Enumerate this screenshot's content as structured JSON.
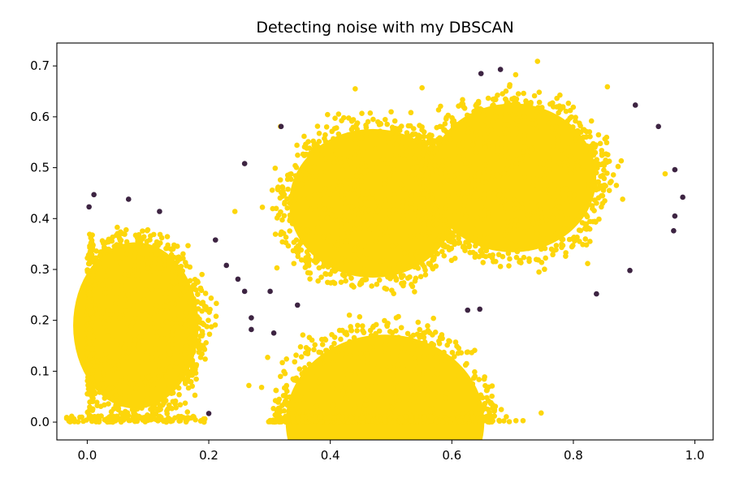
{
  "chart_data": {
    "type": "scatter",
    "title": "Detecting noise with my DBSCAN",
    "xlabel": "",
    "ylabel": "",
    "xlim": [
      -0.05,
      1.03
    ],
    "ylim": [
      -0.035,
      0.745
    ],
    "xticks": [
      0.0,
      0.2,
      0.4,
      0.6,
      0.8,
      1.0
    ],
    "xtick_labels": [
      "0.0",
      "0.2",
      "0.4",
      "0.6",
      "0.8",
      "1.0"
    ],
    "yticks": [
      0.0,
      0.1,
      0.2,
      0.3,
      0.4,
      0.5,
      0.6,
      0.7
    ],
    "ytick_labels": [
      "0.0",
      "0.1",
      "0.2",
      "0.3",
      "0.4",
      "0.5",
      "0.6",
      "0.7"
    ],
    "grid": false,
    "legend": "none",
    "colors": {
      "cluster": "#FDD60A",
      "noise": "#3D2442"
    },
    "clusters": [
      {
        "shape": "ellipse",
        "cx": 0.08,
        "cy": 0.19,
        "rx": 0.12,
        "ry": 0.19,
        "x_min": 0.0,
        "y_min": 0.0
      },
      {
        "shape": "ellipse",
        "cx": 0.47,
        "cy": 0.43,
        "rx": 0.16,
        "ry": 0.17
      },
      {
        "shape": "ellipse",
        "cx": 0.7,
        "cy": 0.48,
        "rx": 0.16,
        "ry": 0.17
      },
      {
        "shape": "ellipse",
        "cx": 0.49,
        "cy": 0.0,
        "rx": 0.19,
        "ry": 0.2,
        "y_min": 0.0
      }
    ],
    "noise_points": [
      {
        "x": 0.003,
        "y": 0.423
      },
      {
        "x": 0.011,
        "y": 0.447
      },
      {
        "x": 0.068,
        "y": 0.438
      },
      {
        "x": 0.119,
        "y": 0.414
      },
      {
        "x": 0.211,
        "y": 0.358
      },
      {
        "x": 0.229,
        "y": 0.308
      },
      {
        "x": 0.248,
        "y": 0.281
      },
      {
        "x": 0.259,
        "y": 0.508
      },
      {
        "x": 0.259,
        "y": 0.257
      },
      {
        "x": 0.27,
        "y": 0.205
      },
      {
        "x": 0.27,
        "y": 0.182
      },
      {
        "x": 0.301,
        "y": 0.257
      },
      {
        "x": 0.307,
        "y": 0.175
      },
      {
        "x": 0.319,
        "y": 0.581
      },
      {
        "x": 0.346,
        "y": 0.23
      },
      {
        "x": 0.2,
        "y": 0.017
      },
      {
        "x": 0.626,
        "y": 0.22
      },
      {
        "x": 0.646,
        "y": 0.222
      },
      {
        "x": 0.648,
        "y": 0.685
      },
      {
        "x": 0.68,
        "y": 0.693
      },
      {
        "x": 0.838,
        "y": 0.252
      },
      {
        "x": 0.893,
        "y": 0.298
      },
      {
        "x": 0.902,
        "y": 0.623
      },
      {
        "x": 0.94,
        "y": 0.581
      },
      {
        "x": 0.967,
        "y": 0.496
      },
      {
        "x": 0.967,
        "y": 0.405
      },
      {
        "x": 0.965,
        "y": 0.376
      },
      {
        "x": 0.98,
        "y": 0.442
      }
    ],
    "cluster_sample_points": [
      {
        "x": 0.318,
        "y": 0.581
      },
      {
        "x": 0.441,
        "y": 0.655
      },
      {
        "x": 0.551,
        "y": 0.657
      },
      {
        "x": 0.741,
        "y": 0.709
      },
      {
        "x": 0.856,
        "y": 0.659
      },
      {
        "x": 0.951,
        "y": 0.488
      },
      {
        "x": 0.747,
        "y": 0.018
      },
      {
        "x": 0.66,
        "y": 0.042
      },
      {
        "x": 0.595,
        "y": 0.16
      },
      {
        "x": 0.243,
        "y": 0.414
      },
      {
        "x": 0.212,
        "y": 0.208
      },
      {
        "x": 0.266,
        "y": 0.072
      }
    ]
  }
}
